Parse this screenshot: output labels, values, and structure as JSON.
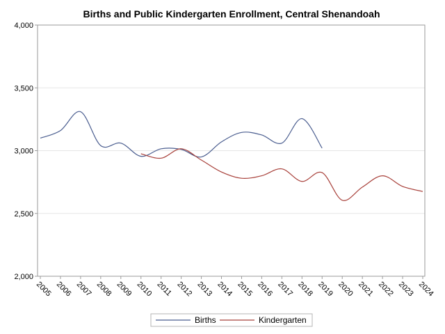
{
  "chart_data": {
    "type": "line",
    "title": "Births and Public Kindergarten Enrollment, Central Shenandoah",
    "xlabel": "",
    "ylabel": "",
    "x": [
      2005,
      2006,
      2007,
      2008,
      2009,
      2010,
      2011,
      2012,
      2013,
      2014,
      2015,
      2016,
      2017,
      2018,
      2019,
      2020,
      2021,
      2022,
      2023,
      2024
    ],
    "xlim": [
      2005,
      2024
    ],
    "ylim": [
      2000,
      4000
    ],
    "y_ticks": [
      2000,
      2500,
      3000,
      3500,
      4000
    ],
    "y_tick_labels": [
      "2,000",
      "2,500",
      "3,000",
      "3,500",
      "4,000"
    ],
    "x_tick_labels": [
      "2005",
      "2006",
      "2007",
      "2008",
      "2009",
      "2010",
      "2011",
      "2012",
      "2013",
      "2014",
      "2015",
      "2016",
      "2017",
      "2018",
      "2019",
      "2020",
      "2021",
      "2022",
      "2023",
      "2024"
    ],
    "grid": true,
    "smooth": true,
    "legend_position": "bottom-center",
    "series": [
      {
        "name": "Births",
        "color": "#4a5d8f",
        "x": [
          2005,
          2006,
          2007,
          2008,
          2009,
          2010,
          2011,
          2012,
          2013,
          2014,
          2015,
          2016,
          2017,
          2018,
          2019
        ],
        "values": [
          3100,
          3160,
          3310,
          3040,
          3060,
          2955,
          3015,
          3010,
          2950,
          3070,
          3145,
          3125,
          3060,
          3255,
          3020
        ]
      },
      {
        "name": "Kindergarten",
        "color": "#a8403a",
        "x": [
          2010,
          2011,
          2012,
          2013,
          2014,
          2015,
          2016,
          2017,
          2018,
          2019,
          2020,
          2021,
          2022,
          2023,
          2024
        ],
        "values": [
          2975,
          2940,
          3015,
          2925,
          2830,
          2780,
          2800,
          2855,
          2755,
          2825,
          2605,
          2710,
          2800,
          2715,
          2675
        ]
      }
    ]
  }
}
